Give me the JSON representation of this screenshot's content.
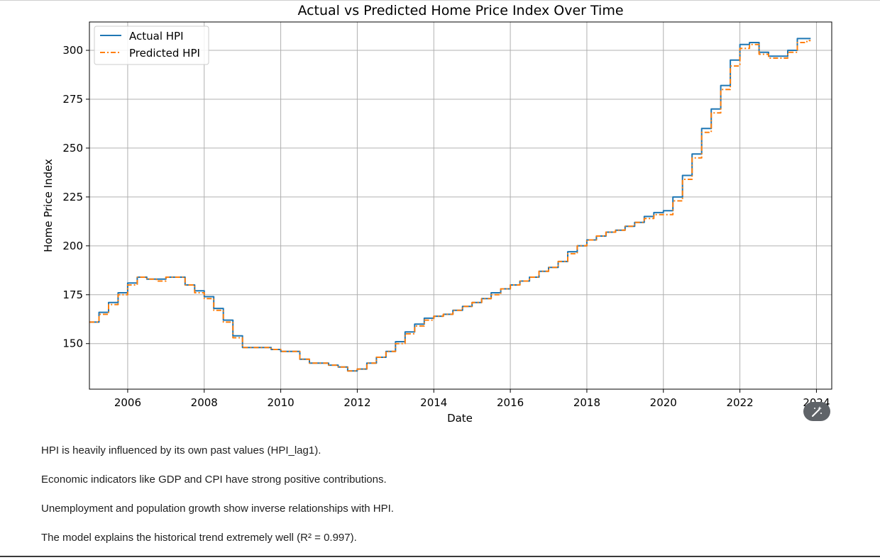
{
  "chart_data": {
    "type": "line",
    "title": "Actual vs Predicted Home Price Index Over Time",
    "xlabel": "Date",
    "ylabel": "Home Price Index",
    "xlim": [
      2005.0,
      2024.4
    ],
    "ylim": [
      126.7,
      314.5
    ],
    "x_ticks": [
      "2006",
      "2008",
      "2010",
      "2012",
      "2014",
      "2016",
      "2018",
      "2020",
      "2022",
      "2024"
    ],
    "y_ticks": [
      "150",
      "175",
      "200",
      "225",
      "250",
      "275",
      "300"
    ],
    "grid": true,
    "legend_placement": "upper-left",
    "series": [
      {
        "name": "Actual HPI",
        "color": "#1f77b4",
        "style": "solid-steps",
        "x": [
          2005.0,
          2005.25,
          2005.5,
          2005.75,
          2006.0,
          2006.25,
          2006.5,
          2006.75,
          2007.0,
          2007.25,
          2007.5,
          2007.75,
          2008.0,
          2008.25,
          2008.5,
          2008.75,
          2009.0,
          2009.25,
          2009.5,
          2009.75,
          2010.0,
          2010.25,
          2010.5,
          2010.75,
          2011.0,
          2011.25,
          2011.5,
          2011.75,
          2012.0,
          2012.25,
          2012.5,
          2012.75,
          2013.0,
          2013.25,
          2013.5,
          2013.75,
          2014.0,
          2014.25,
          2014.5,
          2014.75,
          2015.0,
          2015.25,
          2015.5,
          2015.75,
          2016.0,
          2016.25,
          2016.5,
          2016.75,
          2017.0,
          2017.25,
          2017.5,
          2017.75,
          2018.0,
          2018.25,
          2018.5,
          2018.75,
          2019.0,
          2019.25,
          2019.5,
          2019.75,
          2020.0,
          2020.25,
          2020.5,
          2020.75,
          2021.0,
          2021.25,
          2021.5,
          2021.75,
          2022.0,
          2022.25,
          2022.5,
          2022.75,
          2023.0,
          2023.25,
          2023.5,
          2023.75,
          2023.85
        ],
        "y": [
          161,
          166,
          171,
          176,
          181,
          184,
          183,
          183,
          184,
          184,
          180,
          177,
          174,
          168,
          162,
          154,
          148,
          148,
          148,
          147,
          146,
          146,
          142,
          140,
          140,
          139,
          138,
          136,
          137,
          140,
          143,
          146,
          151,
          156,
          160,
          163,
          164,
          165,
          167,
          169,
          171,
          173,
          176,
          178,
          180,
          182,
          184,
          187,
          189,
          192,
          197,
          200,
          203,
          205,
          207,
          208,
          210,
          212,
          215,
          217,
          218,
          225,
          236,
          247,
          260,
          270,
          282,
          295,
          303,
          304,
          299,
          297,
          297,
          300,
          306,
          306,
          306
        ]
      },
      {
        "name": "Predicted HPI",
        "color": "#ff7f0e",
        "style": "dashdot-steps",
        "x": [
          2005.0,
          2005.25,
          2005.5,
          2005.75,
          2006.0,
          2006.25,
          2006.5,
          2006.75,
          2007.0,
          2007.25,
          2007.5,
          2007.75,
          2008.0,
          2008.25,
          2008.5,
          2008.75,
          2009.0,
          2009.25,
          2009.5,
          2009.75,
          2010.0,
          2010.25,
          2010.5,
          2010.75,
          2011.0,
          2011.25,
          2011.5,
          2011.75,
          2012.0,
          2012.25,
          2012.5,
          2012.75,
          2013.0,
          2013.25,
          2013.5,
          2013.75,
          2014.0,
          2014.25,
          2014.5,
          2014.75,
          2015.0,
          2015.25,
          2015.5,
          2015.75,
          2016.0,
          2016.25,
          2016.5,
          2016.75,
          2017.0,
          2017.25,
          2017.5,
          2017.75,
          2018.0,
          2018.25,
          2018.5,
          2018.75,
          2019.0,
          2019.25,
          2019.5,
          2019.75,
          2020.0,
          2020.25,
          2020.5,
          2020.75,
          2021.0,
          2021.25,
          2021.5,
          2021.75,
          2022.0,
          2022.25,
          2022.5,
          2022.75,
          2023.0,
          2023.25,
          2023.5,
          2023.75,
          2023.85
        ],
        "y": [
          161,
          165,
          170,
          175,
          180,
          184,
          183,
          182,
          184,
          184,
          180,
          176,
          173,
          167,
          161,
          153,
          148,
          148,
          148,
          147,
          146,
          146,
          142,
          140,
          140,
          139,
          138,
          136,
          137,
          140,
          143,
          146,
          150,
          155,
          159,
          162,
          164,
          165,
          167,
          169,
          171,
          173,
          175,
          178,
          180,
          182,
          184,
          187,
          189,
          192,
          196,
          200,
          203,
          205,
          207,
          208,
          210,
          212,
          214,
          216,
          216,
          223,
          234,
          245,
          258,
          268,
          280,
          292,
          301,
          303,
          298,
          296,
          296,
          299,
          304,
          305,
          305
        ]
      }
    ]
  },
  "notes": [
    "HPI is heavily influenced by its own past values (HPI_lag1).",
    "Economic indicators like GDP and CPI have strong positive contributions.",
    "Unemployment and population growth show inverse relationships with HPI.",
    "The model explains the historical trend extremely well (R² = 0.997)."
  ],
  "magic_icon": "magic-wand-icon"
}
